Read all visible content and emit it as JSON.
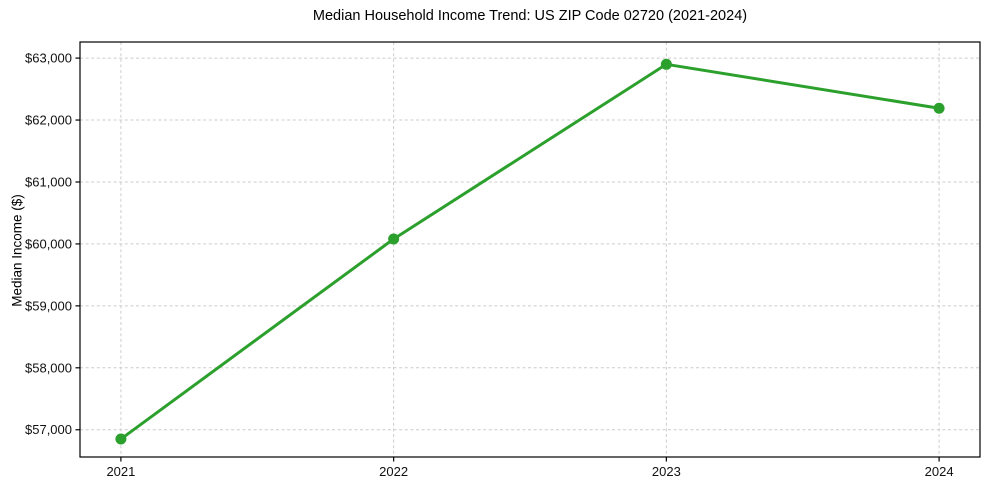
{
  "chart_data": {
    "type": "line",
    "title": "Median Household Income Trend: US ZIP Code 02720 (2021-2024)",
    "xlabel": "",
    "ylabel": "Median Income ($)",
    "x": [
      2021,
      2022,
      2023,
      2024
    ],
    "x_tick_labels": [
      "2021",
      "2022",
      "2023",
      "2024"
    ],
    "y_ticks": [
      57000,
      58000,
      59000,
      60000,
      61000,
      62000,
      63000
    ],
    "y_tick_labels": [
      "$57,000",
      "$58,000",
      "$59,000",
      "$60,000",
      "$61,000",
      "$62,000",
      "$63,000"
    ],
    "series": [
      {
        "name": "median-household-income",
        "values": [
          56850,
          60080,
          62900,
          62190
        ],
        "color": "#2ca02c",
        "marker": "circle",
        "line_width": 3,
        "marker_radius": 5.5
      }
    ],
    "xlim": [
      2020.85,
      2024.15
    ],
    "ylim": [
      56560,
      63260
    ],
    "grid": true,
    "grid_style": "dashed",
    "grid_color": "#cccccc",
    "spine_color": "#000000",
    "background": "#ffffff",
    "legend": "none"
  }
}
